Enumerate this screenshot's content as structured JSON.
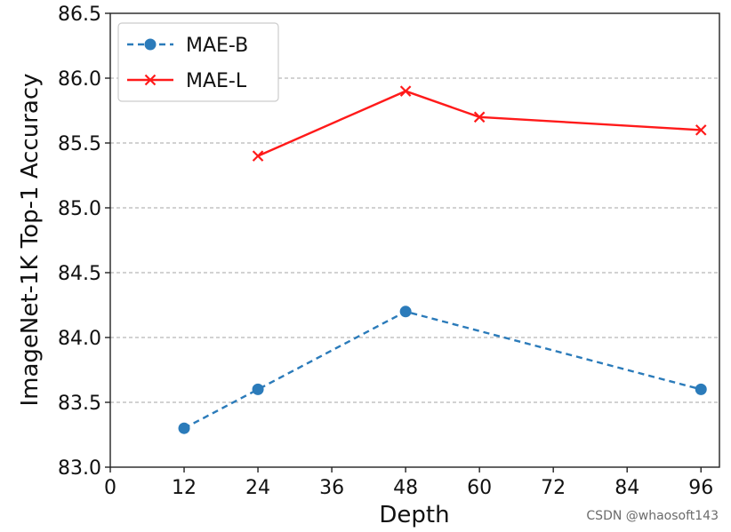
{
  "chart_data": {
    "type": "line",
    "title": "",
    "xlabel": "Depth",
    "ylabel": "ImageNet-1K Top-1 Accuracy",
    "xlim": [
      0,
      99
    ],
    "ylim": [
      83.0,
      86.5
    ],
    "xticks": [
      0,
      12,
      24,
      36,
      48,
      60,
      72,
      84,
      96
    ],
    "yticks": [
      83.0,
      83.5,
      84.0,
      84.5,
      85.0,
      85.5,
      86.0,
      86.5
    ],
    "ytick_labels": [
      "83.0",
      "83.5",
      "84.0",
      "84.5",
      "85.0",
      "85.5",
      "86.0",
      "86.5"
    ],
    "grid": "horizontal dashed",
    "legend_position": "top-left",
    "series": [
      {
        "name": "MAE-B",
        "color": "#2b7bba",
        "line_style": "dashed",
        "marker": "circle",
        "x": [
          12,
          24,
          48,
          96
        ],
        "y": [
          83.3,
          83.6,
          84.2,
          83.6
        ]
      },
      {
        "name": "MAE-L",
        "color": "#ff1a1a",
        "line_style": "solid",
        "marker": "x",
        "x": [
          24,
          48,
          60,
          96
        ],
        "y": [
          85.4,
          85.9,
          85.7,
          85.6
        ]
      }
    ]
  },
  "watermark": "CSDN @whaosoft143"
}
